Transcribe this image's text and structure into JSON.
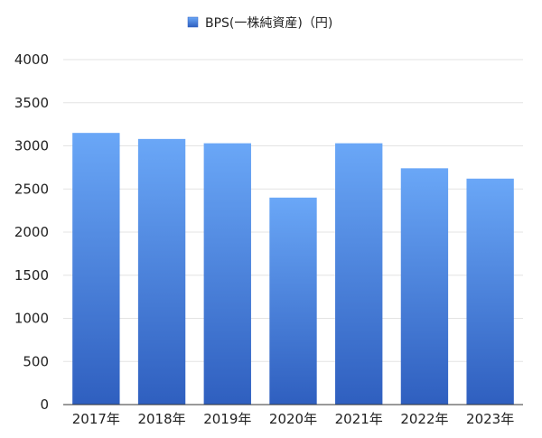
{
  "chart_data": {
    "type": "bar",
    "categories": [
      "2017年",
      "2018年",
      "2019年",
      "2020年",
      "2021年",
      "2022年",
      "2023年"
    ],
    "series": [
      {
        "name": "BPS(一株純資産)（円)",
        "values": [
          3150,
          3080,
          3030,
          2400,
          3030,
          2740,
          2620
        ]
      }
    ],
    "title": "",
    "xlabel": "",
    "ylabel": "",
    "ylim": [
      0,
      4000
    ],
    "yticks": [
      0,
      500,
      1000,
      1500,
      2000,
      2500,
      3000,
      3500,
      4000
    ],
    "grid": true,
    "legend_position": "top-center",
    "colors": {
      "bar_top": "#6aa7f7",
      "bar_bottom": "#2f5fbf",
      "grid": "#e3e3e3",
      "axis": "#333333"
    }
  }
}
